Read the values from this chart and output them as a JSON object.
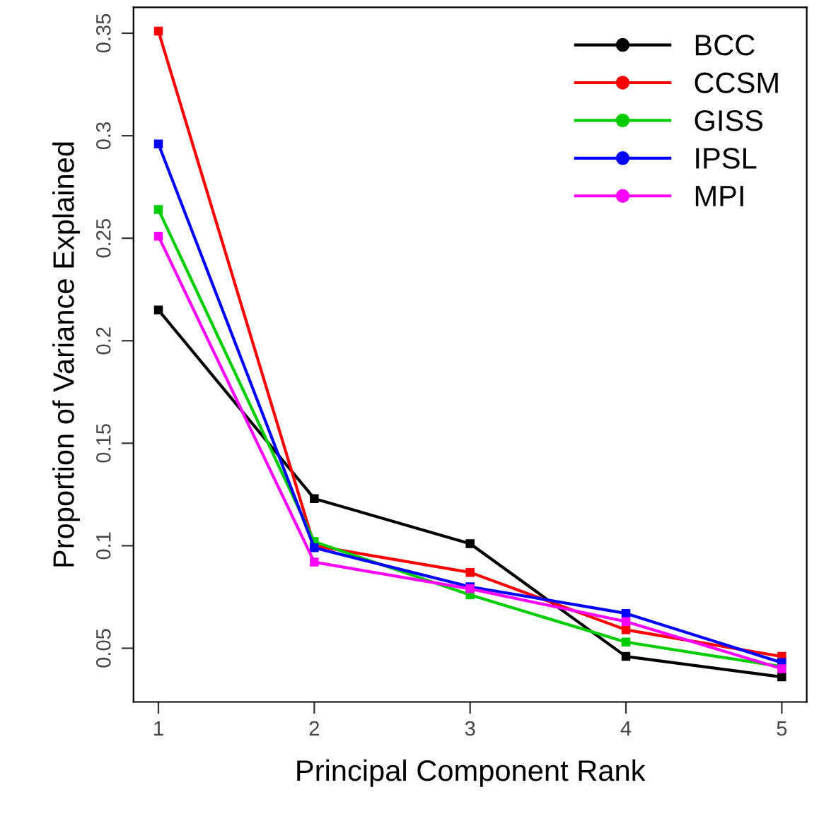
{
  "chart_data": {
    "type": "line",
    "xlabel": "Principal Component Rank",
    "ylabel": "Proportion of Variance Explained",
    "x": [
      1,
      2,
      3,
      4,
      5
    ],
    "xlim": [
      0.84,
      5.16
    ],
    "xticks": [
      1,
      2,
      3,
      4,
      5
    ],
    "ylim": [
      0.0238,
      0.3626
    ],
    "yticks": [
      0.05,
      0.1,
      0.15,
      0.2,
      0.25,
      0.3,
      0.35
    ],
    "marker": "square",
    "line_style": "solid",
    "grid": false,
    "legend": "top right",
    "series": [
      {
        "name": "BCC",
        "color": "#000000",
        "values": [
          0.215,
          0.123,
          0.101,
          0.046,
          0.036
        ]
      },
      {
        "name": "CCSM",
        "color": "#ff0000",
        "values": [
          0.351,
          0.1,
          0.087,
          0.059,
          0.046
        ]
      },
      {
        "name": "GISS",
        "color": "#00cd00",
        "values": [
          0.264,
          0.102,
          0.076,
          0.053,
          0.041
        ]
      },
      {
        "name": "IPSL",
        "color": "#0000ff",
        "values": [
          0.296,
          0.099,
          0.08,
          0.067,
          0.043
        ]
      },
      {
        "name": "MPI",
        "color": "#ff00ff",
        "values": [
          0.251,
          0.092,
          0.079,
          0.063,
          0.04
        ]
      }
    ]
  }
}
